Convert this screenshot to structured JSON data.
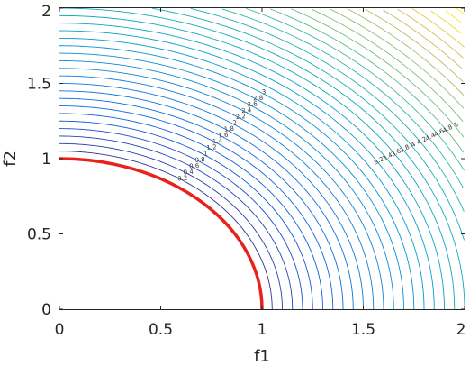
{
  "chart_data": {
    "type": "contour",
    "xlabel": "f1",
    "ylabel": "f2",
    "xlim": [
      0,
      2
    ],
    "ylim": [
      0,
      2
    ],
    "x_ticks": [
      "0",
      "0.5",
      "1",
      "1.5",
      "2"
    ],
    "y_ticks": [
      "0",
      "0.5",
      "1",
      "1.5",
      "2"
    ],
    "grid": false,
    "colormap": "parula",
    "contour_levels": [
      1.0,
      1.05,
      1.1,
      1.15,
      1.2,
      1.25,
      1.3,
      1.35,
      1.4,
      1.45,
      1.5,
      1.55,
      1.6,
      1.65,
      1.7,
      1.75,
      1.8,
      1.85,
      1.9,
      1.95,
      2.0,
      2.05,
      2.1,
      2.15,
      2.2,
      2.25,
      2.3,
      2.35,
      2.4,
      2.45,
      2.5,
      2.55,
      2.6,
      2.65,
      2.7,
      2.75,
      2.8
    ],
    "level_labels_inner": [
      "0.2",
      "0.4",
      "0.6",
      "0.8",
      "1",
      "1.2",
      "1.4",
      "1.6",
      "1.8",
      "2",
      "2.2",
      "2.4",
      "2.6",
      "2.8",
      "3"
    ],
    "level_labels_outer": [
      "3.2",
      "3.4",
      "3.6",
      "3.8",
      "4",
      "4.2",
      "4.4",
      "4.6",
      "4.8",
      "5",
      "5.2",
      "5.4",
      "5.6",
      "5.8",
      "6",
      "6.2",
      "6.4",
      "6.6",
      "6.8",
      "7",
      "7.2",
      "7.4"
    ],
    "highlight_curve": {
      "shape": "quarter-circle",
      "radius": 1,
      "color": "#e8211c"
    },
    "colors": {
      "axis": "#262626",
      "highlight": "#e8211c"
    }
  }
}
